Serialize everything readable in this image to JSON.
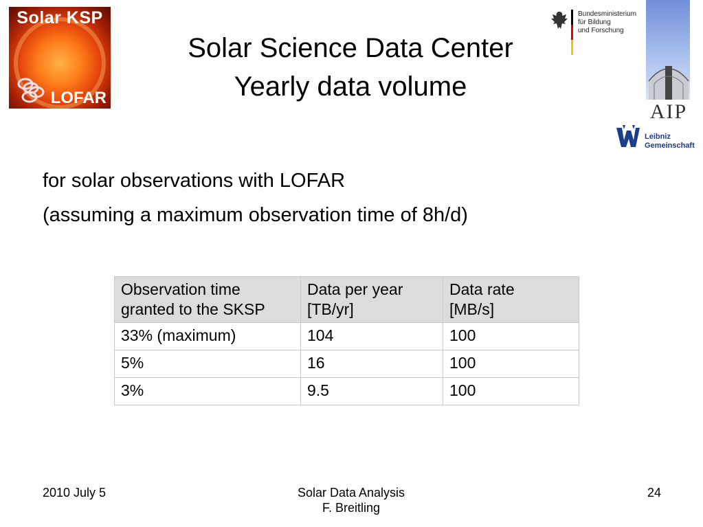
{
  "logos": {
    "ksp_top": "Solar KSP",
    "ksp_bottom": "LOFAR",
    "bmbf_text": "Bundesministerium\nfür Bildung\nund Forschung",
    "aip_text": "AIP",
    "leibniz_text": "Leibniz\nGemeinschaft"
  },
  "title": {
    "line1": "Solar Science Data Center",
    "line2": "Yearly data volume"
  },
  "intro": {
    "line1": "for solar observations with LOFAR",
    "line2": "(assuming a maximum observation time of 8h/d)"
  },
  "table": {
    "headers": [
      "Observation time\ngranted to the SKSP",
      "Data per year\n[TB/yr]",
      "Data rate\n[MB/s]"
    ],
    "rows": [
      [
        "33% (maximum)",
        "104",
        "100"
      ],
      [
        "5%",
        "16",
        "100"
      ],
      [
        "3%",
        "9.5",
        "100"
      ]
    ]
  },
  "footer": {
    "date": "2010 July 5",
    "center_line1": "Solar Data Analysis",
    "center_line2": "F. Breitling",
    "page": "24"
  },
  "colors": {
    "header_bg": "#dcdcdc",
    "sky_blue": "#6f8fd8",
    "sun_orange": "#ff7a1a"
  }
}
